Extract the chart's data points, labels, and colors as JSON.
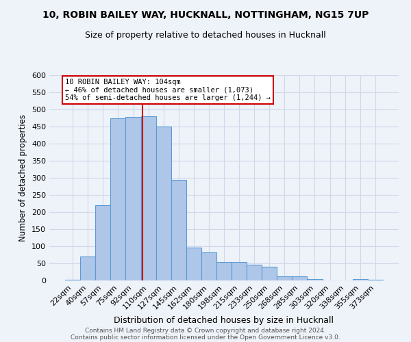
{
  "title1": "10, ROBIN BAILEY WAY, HUCKNALL, NOTTINGHAM, NG15 7UP",
  "title2": "Size of property relative to detached houses in Hucknall",
  "xlabel": "Distribution of detached houses by size in Hucknall",
  "ylabel": "Number of detached properties",
  "categories": [
    "22sqm",
    "40sqm",
    "57sqm",
    "75sqm",
    "92sqm",
    "110sqm",
    "127sqm",
    "145sqm",
    "162sqm",
    "180sqm",
    "198sqm",
    "215sqm",
    "233sqm",
    "250sqm",
    "268sqm",
    "285sqm",
    "303sqm",
    "320sqm",
    "338sqm",
    "355sqm",
    "373sqm"
  ],
  "values": [
    2,
    70,
    220,
    475,
    478,
    480,
    450,
    295,
    97,
    82,
    55,
    55,
    47,
    40,
    13,
    13,
    5,
    1,
    1,
    5,
    2
  ],
  "bar_color": "#aec6e8",
  "bar_edge_color": "#5b9bd5",
  "grid_color": "#d0d8e8",
  "bg_color": "#eef2f9",
  "vline_color": "#cc0000",
  "vline_x": 4.62,
  "annotation_text": "10 ROBIN BAILEY WAY: 104sqm\n← 46% of detached houses are smaller (1,073)\n54% of semi-detached houses are larger (1,244) →",
  "annotation_box_color": "white",
  "annotation_box_edge": "#cc0000",
  "ylim": [
    0,
    600
  ],
  "yticks": [
    0,
    50,
    100,
    150,
    200,
    250,
    300,
    350,
    400,
    450,
    500,
    550,
    600
  ],
  "footer1": "Contains HM Land Registry data © Crown copyright and database right 2024.",
  "footer2": "Contains public sector information licensed under the Open Government Licence v3.0."
}
